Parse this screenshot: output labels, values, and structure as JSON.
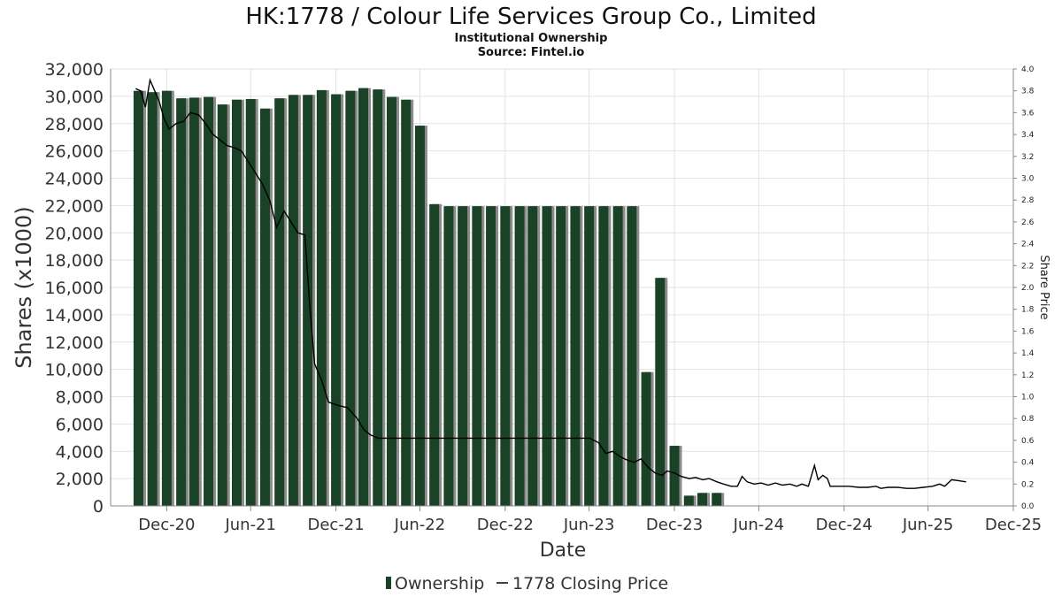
{
  "chart_data": {
    "type": "bar",
    "title": "HK:1778 / Colour Life Services Group Co., Limited",
    "subtitle": "Institutional Ownership",
    "source": "Source: Fintel.io",
    "xlabel": "Date",
    "ylabel": "Shares (x1000)",
    "y2label": "Share Price",
    "ylim": [
      0,
      32000
    ],
    "y2lim": [
      0,
      4.0
    ],
    "y_ticks": [
      "0",
      "2,000",
      "4,000",
      "6,000",
      "8,000",
      "10,000",
      "12,000",
      "14,000",
      "16,000",
      "18,000",
      "20,000",
      "22,000",
      "24,000",
      "26,000",
      "28,000",
      "30,000",
      "32,000"
    ],
    "y2_ticks": [
      "0.0",
      "0.2",
      "0.4",
      "0.6",
      "0.8",
      "1.0",
      "1.2",
      "1.4",
      "1.6",
      "1.8",
      "2.0",
      "2.2",
      "2.4",
      "2.6",
      "2.8",
      "3.0",
      "3.2",
      "3.4",
      "3.6",
      "3.8",
      "4.0"
    ],
    "x_ticks": [
      "Dec-20",
      "Jun-21",
      "Dec-21",
      "Jun-22",
      "Dec-22",
      "Jun-23",
      "Dec-23",
      "Jun-24",
      "Dec-24",
      "Jun-25",
      "Dec-25"
    ],
    "x_start": "2020-09-01",
    "x_end": "2025-12-31",
    "grid": true,
    "legend_position": "bottom",
    "colors": {
      "bar": "#1a4226",
      "bar_shadow": "#8c8c8c",
      "line": "#000000",
      "grid": "#e2e2e2"
    },
    "series": [
      {
        "name": "Ownership",
        "kind": "bar",
        "points": [
          [
            "2020-10-31",
            30400
          ],
          [
            "2020-11-30",
            30300
          ],
          [
            "2020-12-31",
            30400
          ],
          [
            "2021-01-31",
            29850
          ],
          [
            "2021-02-28",
            29900
          ],
          [
            "2021-03-31",
            29950
          ],
          [
            "2021-04-30",
            29400
          ],
          [
            "2021-05-31",
            29750
          ],
          [
            "2021-06-30",
            29800
          ],
          [
            "2021-07-31",
            29100
          ],
          [
            "2021-08-31",
            29850
          ],
          [
            "2021-09-30",
            30100
          ],
          [
            "2021-10-31",
            30100
          ],
          [
            "2021-11-30",
            30450
          ],
          [
            "2021-12-31",
            30150
          ],
          [
            "2022-01-31",
            30400
          ],
          [
            "2022-02-28",
            30600
          ],
          [
            "2022-03-31",
            30500
          ],
          [
            "2022-04-30",
            29950
          ],
          [
            "2022-05-31",
            29750
          ],
          [
            "2022-06-30",
            27850
          ],
          [
            "2022-07-31",
            22100
          ],
          [
            "2022-08-31",
            21950
          ],
          [
            "2022-09-30",
            21950
          ],
          [
            "2022-10-31",
            21950
          ],
          [
            "2022-11-30",
            21950
          ],
          [
            "2022-12-31",
            21950
          ],
          [
            "2023-01-31",
            21950
          ],
          [
            "2023-02-28",
            21950
          ],
          [
            "2023-03-31",
            21950
          ],
          [
            "2023-04-30",
            21950
          ],
          [
            "2023-05-31",
            21950
          ],
          [
            "2023-06-30",
            21950
          ],
          [
            "2023-07-31",
            21950
          ],
          [
            "2023-08-31",
            21950
          ],
          [
            "2023-09-30",
            21950
          ],
          [
            "2023-10-31",
            9800
          ],
          [
            "2023-11-30",
            16700
          ],
          [
            "2023-12-31",
            4400
          ],
          [
            "2024-01-31",
            750
          ],
          [
            "2024-02-29",
            950
          ],
          [
            "2024-03-31",
            950
          ]
        ]
      },
      {
        "name": "1778 Closing Price",
        "kind": "line",
        "axis": "right",
        "points": [
          [
            "2020-10-25",
            3.82
          ],
          [
            "2020-11-05",
            3.8
          ],
          [
            "2020-11-15",
            3.65
          ],
          [
            "2020-11-25",
            3.9
          ],
          [
            "2020-12-05",
            3.8
          ],
          [
            "2020-12-15",
            3.7
          ],
          [
            "2020-12-25",
            3.55
          ],
          [
            "2021-01-05",
            3.45
          ],
          [
            "2021-01-20",
            3.5
          ],
          [
            "2021-02-05",
            3.52
          ],
          [
            "2021-02-20",
            3.6
          ],
          [
            "2021-03-10",
            3.58
          ],
          [
            "2021-03-25",
            3.5
          ],
          [
            "2021-04-10",
            3.4
          ],
          [
            "2021-04-25",
            3.35
          ],
          [
            "2021-05-10",
            3.3
          ],
          [
            "2021-05-25",
            3.28
          ],
          [
            "2021-06-10",
            3.25
          ],
          [
            "2021-06-25",
            3.15
          ],
          [
            "2021-07-10",
            3.05
          ],
          [
            "2021-07-25",
            2.95
          ],
          [
            "2021-08-10",
            2.8
          ],
          [
            "2021-08-25",
            2.55
          ],
          [
            "2021-09-10",
            2.7
          ],
          [
            "2021-09-25",
            2.6
          ],
          [
            "2021-10-10",
            2.5
          ],
          [
            "2021-10-25",
            2.48
          ],
          [
            "2021-11-05",
            1.8
          ],
          [
            "2021-11-15",
            1.3
          ],
          [
            "2021-11-30",
            1.15
          ],
          [
            "2021-12-15",
            0.95
          ],
          [
            "2022-01-05",
            0.92
          ],
          [
            "2022-01-25",
            0.9
          ],
          [
            "2022-02-15",
            0.8
          ],
          [
            "2022-03-01",
            0.7
          ],
          [
            "2022-03-15",
            0.65
          ],
          [
            "2022-04-01",
            0.62
          ],
          [
            "2022-05-01",
            0.62
          ],
          [
            "2022-06-01",
            0.62
          ],
          [
            "2022-07-01",
            0.62
          ],
          [
            "2022-08-01",
            0.62
          ],
          [
            "2022-09-01",
            0.62
          ],
          [
            "2022-10-01",
            0.62
          ],
          [
            "2022-11-01",
            0.62
          ],
          [
            "2022-12-01",
            0.62
          ],
          [
            "2023-01-01",
            0.62
          ],
          [
            "2023-02-01",
            0.62
          ],
          [
            "2023-03-01",
            0.62
          ],
          [
            "2023-04-01",
            0.62
          ],
          [
            "2023-05-01",
            0.62
          ],
          [
            "2023-06-01",
            0.62
          ],
          [
            "2023-07-01",
            0.62
          ],
          [
            "2023-07-20",
            0.58
          ],
          [
            "2023-08-05",
            0.48
          ],
          [
            "2023-08-20",
            0.5
          ],
          [
            "2023-09-05",
            0.45
          ],
          [
            "2023-09-20",
            0.42
          ],
          [
            "2023-10-05",
            0.4
          ],
          [
            "2023-10-20",
            0.43
          ],
          [
            "2023-11-05",
            0.35
          ],
          [
            "2023-11-20",
            0.3
          ],
          [
            "2023-12-05",
            0.28
          ],
          [
            "2023-12-15",
            0.32
          ],
          [
            "2024-01-01",
            0.3
          ],
          [
            "2024-01-15",
            0.27
          ],
          [
            "2024-02-01",
            0.25
          ],
          [
            "2024-02-15",
            0.26
          ],
          [
            "2024-03-01",
            0.24
          ],
          [
            "2024-03-15",
            0.25
          ],
          [
            "2024-04-01",
            0.22
          ],
          [
            "2024-04-15",
            0.2
          ],
          [
            "2024-05-01",
            0.18
          ],
          [
            "2024-05-15",
            0.18
          ],
          [
            "2024-05-25",
            0.27
          ],
          [
            "2024-06-05",
            0.22
          ],
          [
            "2024-06-20",
            0.2
          ],
          [
            "2024-07-05",
            0.21
          ],
          [
            "2024-07-20",
            0.19
          ],
          [
            "2024-08-05",
            0.21
          ],
          [
            "2024-08-20",
            0.19
          ],
          [
            "2024-09-05",
            0.2
          ],
          [
            "2024-09-20",
            0.18
          ],
          [
            "2024-10-01",
            0.2
          ],
          [
            "2024-10-15",
            0.18
          ],
          [
            "2024-10-28",
            0.37
          ],
          [
            "2024-11-05",
            0.24
          ],
          [
            "2024-11-15",
            0.28
          ],
          [
            "2024-11-25",
            0.25
          ],
          [
            "2024-12-01",
            0.18
          ],
          [
            "2024-12-20",
            0.18
          ],
          [
            "2025-01-10",
            0.18
          ],
          [
            "2025-02-01",
            0.17
          ],
          [
            "2025-02-20",
            0.17
          ],
          [
            "2025-03-10",
            0.18
          ],
          [
            "2025-03-20",
            0.16
          ],
          [
            "2025-04-05",
            0.17
          ],
          [
            "2025-04-25",
            0.17
          ],
          [
            "2025-05-15",
            0.16
          ],
          [
            "2025-06-01",
            0.16
          ],
          [
            "2025-06-20",
            0.17
          ],
          [
            "2025-07-10",
            0.18
          ],
          [
            "2025-07-25",
            0.2
          ],
          [
            "2025-08-05",
            0.18
          ],
          [
            "2025-08-20",
            0.24
          ],
          [
            "2025-09-05",
            0.23
          ],
          [
            "2025-09-20",
            0.22
          ]
        ]
      }
    ]
  },
  "legend": {
    "ownership_label": "Ownership",
    "price_label": "1778 Closing Price"
  }
}
